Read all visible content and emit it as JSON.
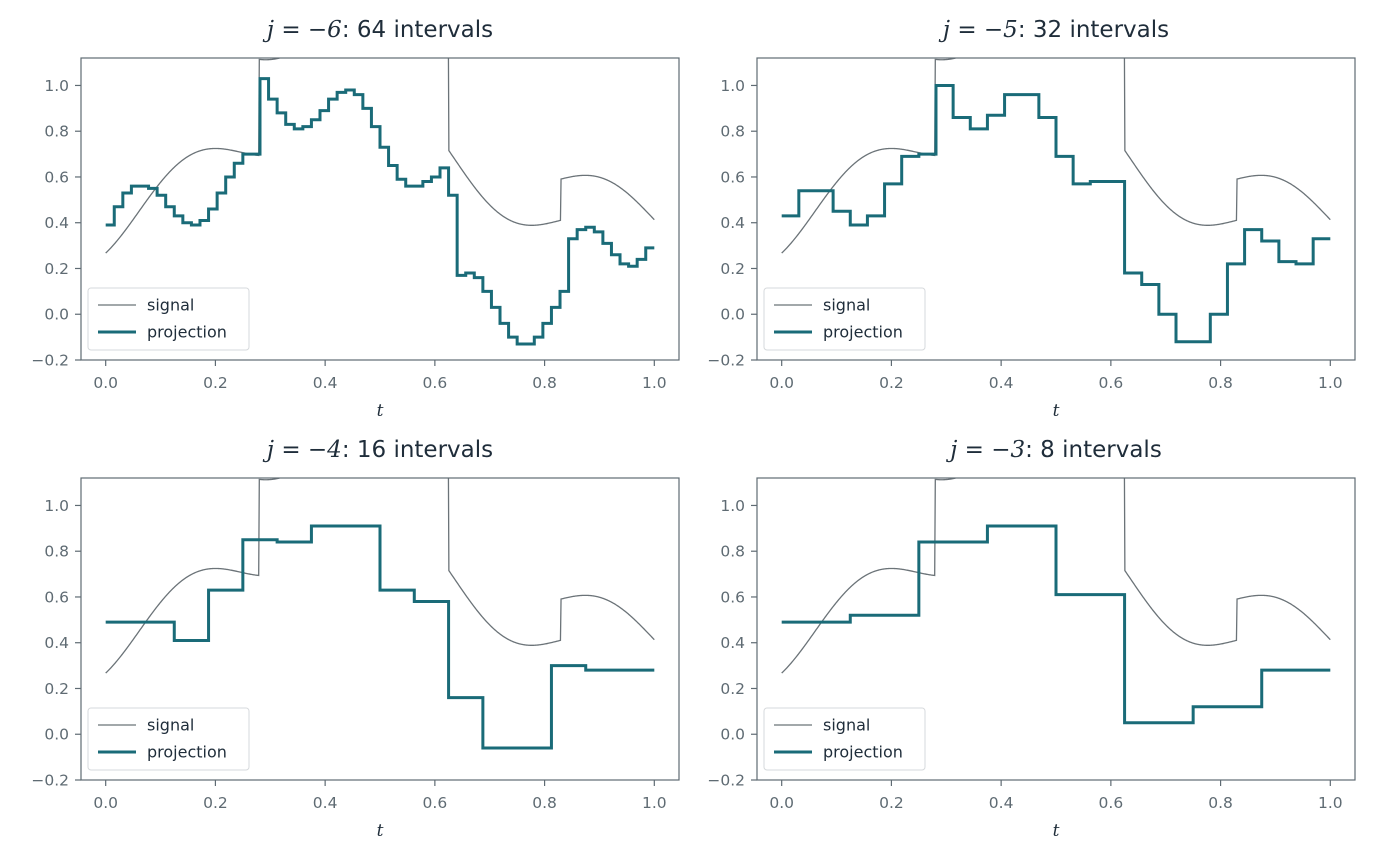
{
  "colors": {
    "signal": "#6b7378",
    "projection": "#1a6b78",
    "axes": "#5f6b73",
    "text": "#1f2d3a"
  },
  "chart_data": [
    {
      "type": "line",
      "title_math": "j = −6",
      "title_text": ": 64 intervals",
      "xlabel": "t",
      "ylabel": "",
      "xlim": [
        -0.045,
        1.045
      ],
      "ylim": [
        -0.2,
        1.12
      ],
      "xticks": [
        "0.0",
        "0.2",
        "0.4",
        "0.6",
        "0.8",
        "1.0"
      ],
      "yticks": [
        "−0.2",
        "0.0",
        "0.2",
        "0.4",
        "0.6",
        "0.8",
        "1.0"
      ],
      "legend": {
        "position": "lower-left",
        "entries": [
          "signal",
          "projection"
        ]
      },
      "intervals": 64,
      "projection_values": [
        0.39,
        0.47,
        0.53,
        0.56,
        0.56,
        0.55,
        0.52,
        0.47,
        0.43,
        0.4,
        0.39,
        0.41,
        0.46,
        0.53,
        0.6,
        0.66,
        0.7,
        0.7,
        1.03,
        0.94,
        0.88,
        0.83,
        0.81,
        0.82,
        0.85,
        0.89,
        0.94,
        0.97,
        0.98,
        0.96,
        0.9,
        0.82,
        0.73,
        0.65,
        0.59,
        0.56,
        0.56,
        0.58,
        0.6,
        0.64,
        0.52,
        0.17,
        0.18,
        0.16,
        0.1,
        0.03,
        -0.04,
        -0.1,
        -0.13,
        -0.13,
        -0.1,
        -0.04,
        0.03,
        0.1,
        0.33,
        0.37,
        0.38,
        0.36,
        0.31,
        0.26,
        0.22,
        0.21,
        0.24,
        0.29
      ]
    },
    {
      "type": "line",
      "title_math": "j = −5",
      "title_text": ": 32 intervals",
      "xlabel": "t",
      "ylabel": "",
      "xlim": [
        -0.045,
        1.045
      ],
      "ylim": [
        -0.2,
        1.12
      ],
      "xticks": [
        "0.0",
        "0.2",
        "0.4",
        "0.6",
        "0.8",
        "1.0"
      ],
      "yticks": [
        "−0.2",
        "0.0",
        "0.2",
        "0.4",
        "0.6",
        "0.8",
        "1.0"
      ],
      "legend": {
        "position": "lower-left",
        "entries": [
          "signal",
          "projection"
        ]
      },
      "intervals": 32,
      "projection_values": [
        0.43,
        0.54,
        0.54,
        0.45,
        0.39,
        0.43,
        0.57,
        0.69,
        0.7,
        1.0,
        0.86,
        0.81,
        0.87,
        0.96,
        0.96,
        0.86,
        0.69,
        0.57,
        0.58,
        0.58,
        0.18,
        0.13,
        0.0,
        -0.12,
        -0.12,
        0.0,
        0.22,
        0.37,
        0.32,
        0.23,
        0.22,
        0.33
      ]
    },
    {
      "type": "line",
      "title_math": "j = −4",
      "title_text": ": 16 intervals",
      "xlabel": "t",
      "ylabel": "",
      "xlim": [
        -0.045,
        1.045
      ],
      "ylim": [
        -0.2,
        1.12
      ],
      "xticks": [
        "0.0",
        "0.2",
        "0.4",
        "0.6",
        "0.8",
        "1.0"
      ],
      "yticks": [
        "−0.2",
        "0.0",
        "0.2",
        "0.4",
        "0.6",
        "0.8",
        "1.0"
      ],
      "legend": {
        "position": "lower-left",
        "entries": [
          "signal",
          "projection"
        ]
      },
      "intervals": 16,
      "projection_values": [
        0.49,
        0.49,
        0.41,
        0.63,
        0.85,
        0.84,
        0.91,
        0.91,
        0.63,
        0.58,
        0.16,
        -0.06,
        -0.06,
        0.3,
        0.28,
        0.28
      ]
    },
    {
      "type": "line",
      "title_math": "j = −3",
      "title_text": ": 8 intervals",
      "xlabel": "t",
      "ylabel": "",
      "xlim": [
        -0.045,
        1.045
      ],
      "ylim": [
        -0.2,
        1.12
      ],
      "xticks": [
        "0.0",
        "0.2",
        "0.4",
        "0.6",
        "0.8",
        "1.0"
      ],
      "yticks": [
        "−0.2",
        "0.0",
        "0.2",
        "0.4",
        "0.6",
        "0.8",
        "1.0"
      ],
      "legend": {
        "position": "lower-left",
        "entries": [
          "signal",
          "projection"
        ]
      },
      "intervals": 8,
      "projection_values": [
        0.49,
        0.52,
        0.84,
        0.91,
        0.61,
        0.05,
        0.12,
        0.28
      ]
    }
  ]
}
